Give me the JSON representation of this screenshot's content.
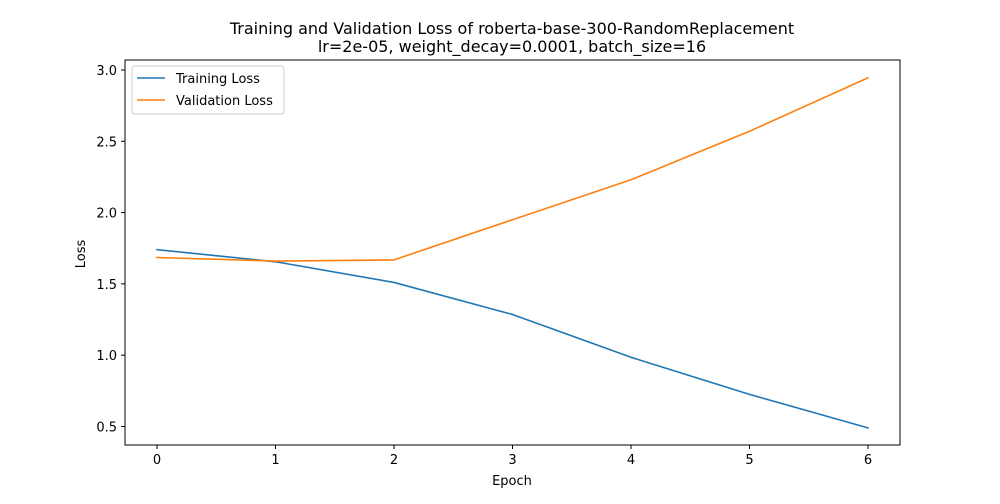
{
  "chart_data": {
    "type": "line",
    "title": "Training and Validation Loss of roberta-base-300-RandomReplacement",
    "subtitle": "lr=2e-05, weight_decay=0.0001, batch_size=16",
    "xlabel": "Epoch",
    "ylabel": "Loss",
    "x": [
      0,
      1,
      2,
      3,
      4,
      5,
      6
    ],
    "xticks": [
      "0",
      "1",
      "2",
      "3",
      "4",
      "5",
      "6"
    ],
    "yticks": [
      "0.5",
      "1.0",
      "1.5",
      "2.0",
      "2.5",
      "3.0"
    ],
    "xlim": [
      -0.27,
      6.27
    ],
    "ylim": [
      0.37,
      3.07
    ],
    "grid": false,
    "legend_position": "upper-left",
    "series": [
      {
        "name": "Training Loss",
        "color": "#1f77b4",
        "values": [
          1.74,
          1.655,
          1.51,
          1.285,
          0.985,
          0.725,
          0.49
        ]
      },
      {
        "name": "Validation Loss",
        "color": "#ff7f0e",
        "values": [
          1.685,
          1.66,
          1.668,
          1.95,
          2.23,
          2.57,
          2.945
        ]
      }
    ]
  }
}
